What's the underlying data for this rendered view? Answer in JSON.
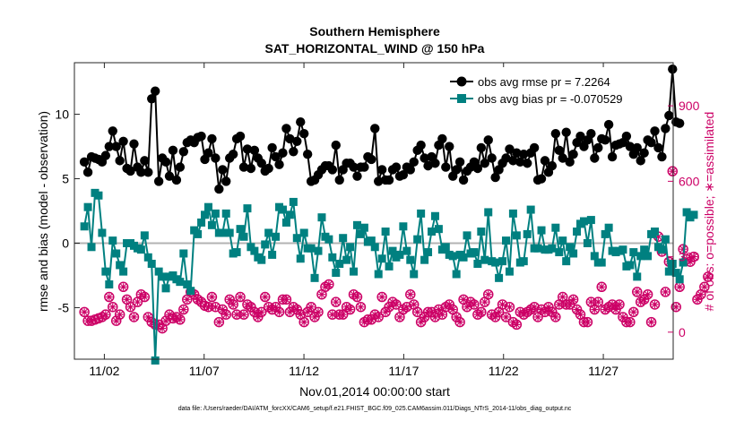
{
  "chart_data": {
    "type": "line",
    "title": "Southern Hemisphere",
    "subtitle": "SAT_HORIZONTAL_WIND @ 150 hPa",
    "xlabel": "Nov.01,2014 00:00:00 start",
    "ylabel_left": "rmse and bias (model - observation)",
    "ylabel_right": "# of obs: o=possible; ∗=assimilated",
    "footer": "data file: /Users/raeder/DAI/ATM_forcXX/CAM6_setup/f.e21.FHIST_BGC.f09_025.CAM6assim.011/Diags_NTrS_2014-11/obs_diag_output.nc",
    "xlim": [
      0.5,
      30.5
    ],
    "ylim_left": [
      -9,
      14
    ],
    "ylim_right": [
      -107.5,
      1071.5
    ],
    "x_tick_labels": [
      "11/02",
      "11/07",
      "11/12",
      "11/17",
      "11/22",
      "11/27"
    ],
    "x_ticks": [
      2,
      7,
      12,
      17,
      22,
      27
    ],
    "y_left_ticks": [
      -5,
      0,
      5,
      10
    ],
    "y_right_ticks": [
      0,
      300,
      600,
      900
    ],
    "grid": false,
    "legend_position": "top-right",
    "colors": {
      "rmse": "#000000",
      "bias": "#008080",
      "obs": "#cc0066",
      "zero": "#b3b3b3"
    },
    "series": [
      {
        "name": "obs avg rmse pr = 7.2264",
        "values": [
          6.3,
          5.5,
          6.7,
          6.6,
          6.5,
          6.3,
          6.8,
          7.5,
          8.7,
          7.5,
          6.4,
          7.9,
          5.8,
          5.6,
          7.7,
          5.9,
          5.5,
          6.4,
          5.5,
          11.2,
          11.8,
          4.8,
          6.6,
          6.3,
          5.2,
          7.2,
          4.9,
          5.9,
          7.1,
          7.8,
          8.0,
          7.8,
          8.2,
          8.3,
          6.5,
          7.0,
          8.1,
          6.6,
          4.2,
          5.7,
          4.8,
          6.6,
          6.9,
          8.1,
          8.3,
          5.9,
          7.3,
          5.8,
          7.2,
          6.6,
          6.2,
          5.6,
          5.8,
          7.4,
          6.7,
          6.1,
          7.0,
          8.9,
          8.1,
          7.1,
          7.9,
          9.4,
          8.5,
          6.9,
          4.8,
          4.9,
          5.3,
          5.7,
          6.0,
          6.0,
          5.7,
          7.6,
          4.9,
          5.7,
          6.2,
          6.2,
          5.9,
          5.2,
          5.9,
          5.9,
          6.7,
          6.5,
          8.9,
          4.8,
          5.7,
          4.9,
          4.9,
          5.7,
          5.9,
          5.2,
          5.3,
          5.9,
          5.7,
          6.3,
          7.2,
          7.6,
          6.6,
          6.0,
          6.7,
          6.2,
          7.6,
          8.1,
          5.9,
          7.5,
          5.2,
          5.7,
          6.3,
          4.9,
          5.6,
          5.9,
          6.3,
          5.8,
          7.4,
          6.2,
          8.0,
          6.6,
          5.1,
          5.7,
          6.2,
          6.6,
          7.3,
          6.4,
          7.0,
          6.3,
          6.9,
          6.2,
          7.0,
          7.4,
          4.9,
          5.0,
          6.4,
          5.5,
          6.0,
          8.5,
          7.2,
          6.6,
          8.6,
          6.3,
          6.9,
          7.8,
          8.3,
          7.5,
          8.0,
          8.5,
          6.6,
          7.4,
          8.1,
          8.0,
          9.2,
          6.7,
          7.6,
          7.7,
          7.8,
          8.3,
          7.5,
          6.9,
          7.4,
          6.4,
          7.0,
          8.0,
          7.8,
          8.7,
          7.4,
          6.7,
          8.9,
          9.9,
          13.5,
          9.4,
          9.3
        ]
      },
      {
        "name": "obs avg bias pr = -0.070529",
        "values": [
          1.3,
          2.8,
          -0.3,
          3.9,
          3.7,
          0.8,
          -2.2,
          -3.2,
          0.2,
          -0.8,
          -1.7,
          -2.2,
          0.0,
          0.0,
          -0.2,
          -0.4,
          -0.5,
          0.6,
          -1.1,
          -1.6,
          -9.1,
          -2.2,
          -2.6,
          -3.5,
          -2.6,
          -2.5,
          -2.8,
          -3.0,
          -0.8,
          -3.2,
          -3.7,
          1.0,
          0.7,
          1.6,
          2.2,
          2.8,
          1.4,
          2.3,
          0.8,
          0.8,
          2.3,
          0.8,
          -0.8,
          -0.7,
          1.1,
          0.5,
          2.7,
          -0.3,
          -0.6,
          -1.1,
          -1.3,
          -0.1,
          0.8,
          -0.9,
          0.5,
          2.8,
          2.6,
          1.6,
          2.2,
          3.2,
          0.4,
          -1.2,
          0.8,
          -0.4,
          -0.4,
          -2.7,
          -0.6,
          2.0,
          0.5,
          0.3,
          -1.1,
          -2.3,
          -1.6,
          0.4,
          -1.3,
          -0.3,
          -2.2,
          1.4,
          0.7,
          1.2,
          0.1,
          0.2,
          -0.3,
          -2.4,
          -1.2,
          0.9,
          -1.8,
          -0.6,
          -1.1,
          -0.9,
          1.3,
          -0.6,
          -1.3,
          -2.4,
          0.3,
          2.3,
          -1.3,
          -0.7,
          0.9,
          2.1,
          1.1,
          -0.5,
          -0.3,
          -0.9,
          -1.0,
          -2.4,
          -0.9,
          -1.1,
          0.6,
          -0.8,
          -0.7,
          -1.6,
          0.9,
          -1.3,
          2.4,
          -1.4,
          -1.5,
          -2.7,
          -1.4,
          0.2,
          -2.2,
          2.3,
          0.6,
          -1.5,
          -1.4,
          0.7,
          2.6,
          -0.4,
          -0.4,
          1.0,
          -0.5,
          -0.5,
          -0.4,
          1.2,
          -0.7,
          0.2,
          -1.4,
          -0.3,
          -0.8,
          0.9,
          1.5,
          1.7,
          0.0,
          1.8,
          -1.0,
          -1.5,
          -1.5,
          0.7,
          1.2,
          -0.6,
          -0.7,
          -0.6,
          -0.5,
          -1.8,
          -1.7,
          -0.7,
          -2.6,
          -1.0,
          -0.5,
          -1.0,
          0.7,
          0.9,
          -0.3,
          -0.5,
          0.3,
          -2.2,
          -1.6,
          -2.3,
          -2.8,
          -1.5,
          2.4,
          2.0,
          2.2
        ]
      },
      {
        "name": "obs possible / assimilated",
        "values": [
          80,
          45,
          45,
          50,
          55,
          60,
          70,
          140,
          100,
          45,
          70,
          180,
          130,
          100,
          60,
          120,
          150,
          140,
          60,
          40,
          30,
          30,
          15,
          45,
          70,
          55,
          60,
          50,
          90,
          130,
          160,
          150,
          130,
          120,
          105,
          100,
          140,
          100,
          40,
          90,
          70,
          130,
          110,
          70,
          140,
          70,
          110,
          100,
          80,
          60,
          80,
          140,
          100,
          90,
          100,
          80,
          130,
          130,
          80,
          100,
          90,
          70,
          40,
          80,
          100,
          60,
          80,
          150,
          180,
          190,
          70,
          120,
          70,
          70,
          100,
          90,
          150,
          140,
          100,
          40,
          50,
          50,
          70,
          60,
          140,
          80,
          100,
          120,
          110,
          60,
          90,
          100,
          150,
          110,
          80,
          40,
          60,
          80,
          80,
          60,
          90,
          70,
          100,
          110,
          90,
          60,
          40,
          130,
          100,
          120,
          110,
          70,
          80,
          120,
          150,
          70,
          60,
          80,
          110,
          60,
          100,
          40,
          30,
          80,
          70,
          80,
          90,
          100,
          60,
          90,
          80,
          100,
          80,
          60,
          110,
          140,
          110,
          110,
          130,
          90,
          70,
          40,
          40,
          120,
          90,
          120,
          180,
          90,
          100,
          110,
          90,
          110,
          60,
          40,
          40,
          80,
          160,
          120,
          130,
          150,
          40,
          110,
          380,
          320,
          160,
          280,
          640,
          100,
          180,
          330,
          290,
          280,
          300,
          130,
          150,
          180,
          220
        ]
      }
    ]
  }
}
